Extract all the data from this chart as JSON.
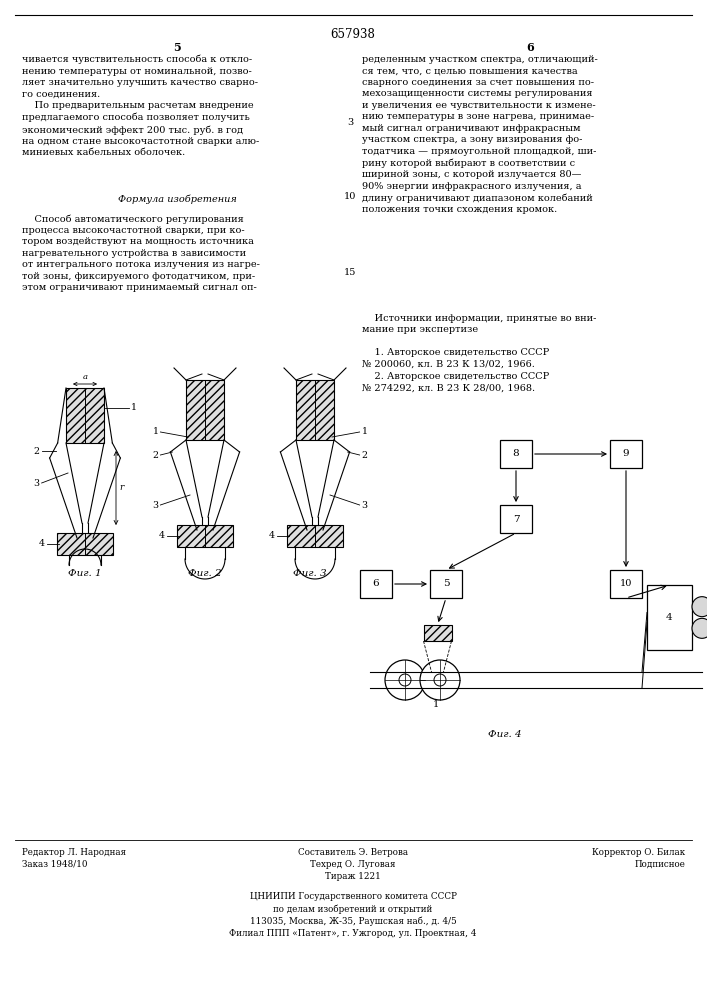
{
  "patent_number": "657938",
  "col_left": "5",
  "col_right": "6",
  "text_left_top": "чивается чувствительность способа к откло-\nнению температуры от номинальной, позво-\nляет значительно улучшить качество сварно-\nго соединения.\n    По предварительным расчетам внедрение\nпредлагаемого способа позволяет получить\nэкономический эффект 200 тыс. руб. в год\nна одном стане высокочастотной сварки алю-\nминиевых кабельных оболочек.",
  "formula_title": "Формула изобретения",
  "text_left_bottom": "    Способ автоматического регулирования\nпроцесса высокочастотной сварки, при ко-\nтором воздействуют на мощность источника\nнагревательного устройства в зависимости\nот интегрального потока излучения из нагре-\nтой зоны, фиксируемого фотодатчиком, при-\nэтом ограничивают принимаемый сигнал оп-",
  "line_numbers": [
    "3",
    "10",
    "15"
  ],
  "text_right_top": "ределенным участком спектра, отличающий-\nся тем, что, с целью повышения качества\nсварного соединения за счет повышения по-\nмехозащищенности системы регулирования\nи увеличения ее чувствительности к измене-\nнию температуры в зоне нагрева, принимае-\nмый сигнал ограничивают инфракрасным\nучастком спектра, а зону визирования фо-\nтодатчика — прямоугольной площадкой, ши-\nрину которой выбирают в соответствии с\nшириной зоны, с которой излучается 80—\n90% энергии инфракрасного излучения, а\nдлину ограничивают диапазоном колебаний\nположения точки схождения кромок.",
  "sources_title": "    Источники информации, принятые во вни-\nмание при экспертизе",
  "source1": "    1. Авторское свидетельство СССР\n№ 200060, кл. В 23 К 13/02, 1966.",
  "source2": "    2. Авторское свидетельство СССР\n№ 274292, кл. В 23 К 28/00, 1968.",
  "fig1_label": "Фиг. 1",
  "fig2_label": "Фиг. 2",
  "fig3_label": "Фиг. 3",
  "fig4_label": "Фиг. 4",
  "bottom_left": "Редактор Л. Народная\nЗаказ 1948/10",
  "bottom_center": "Составитель Э. Ветрова\nТехред О. Луговая\nТираж 1221",
  "bottom_right": "Корректор О. Билак\nПодписное",
  "bottom_footer": "ЦНИИПИ Государственного комитета СССР\nпо делам изобретений и открытий\n113035, Москва, Ж-35, Раушская наб., д. 4/5\nФилиал ППП «Патент», г. Ужгород, ул. Проектная, 4",
  "bg_color": "#ffffff",
  "text_color": "#000000"
}
